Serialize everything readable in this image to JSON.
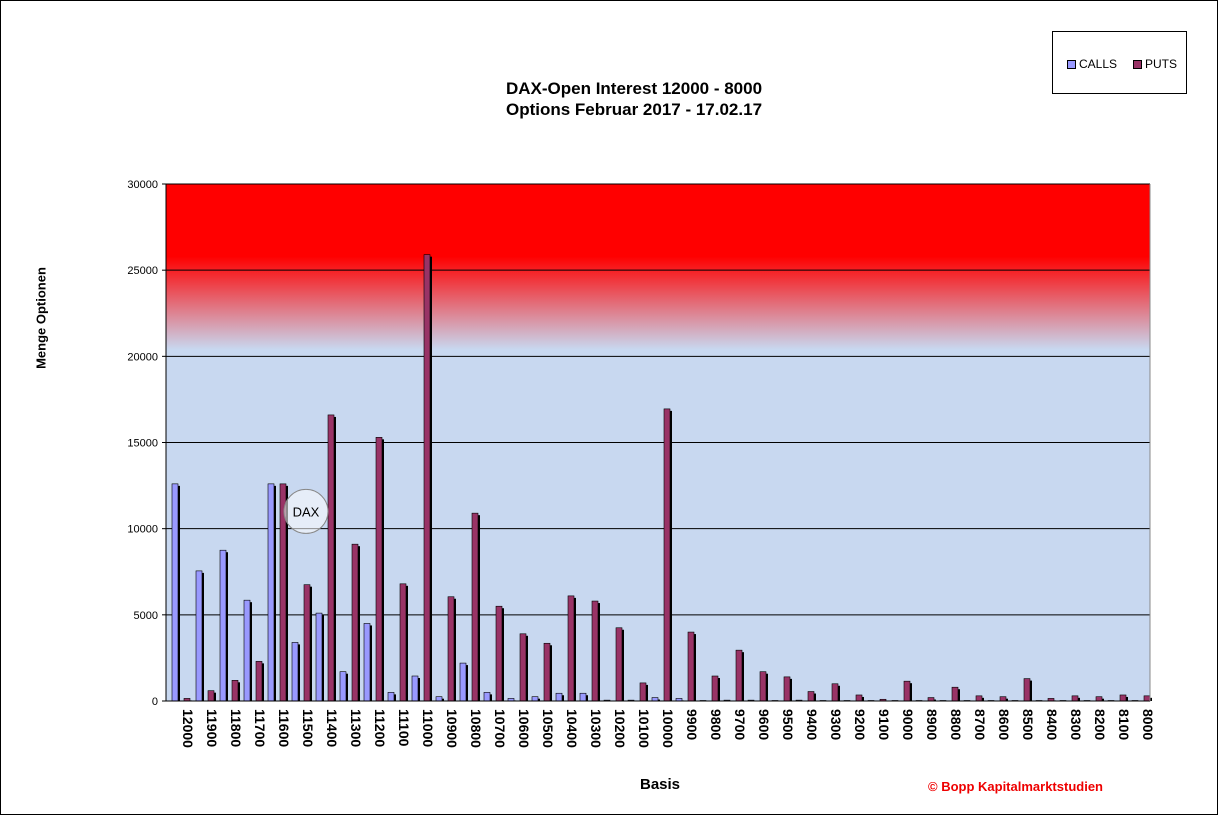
{
  "chart_data": {
    "type": "bar",
    "title": [
      "DAX-Open Interest 12000 - 8000",
      "Options Februar 2017 - 17.02.17"
    ],
    "xlabel": "Basis",
    "ylabel": "Menge Optionen",
    "ylim": [
      0,
      30000
    ],
    "yticks": [
      0,
      5000,
      10000,
      15000,
      20000,
      25000,
      30000
    ],
    "grid": true,
    "legend_position": "top-right",
    "categories": [
      "12000",
      "11900",
      "11800",
      "11700",
      "11600",
      "11500",
      "11400",
      "11300",
      "11200",
      "11100",
      "11000",
      "10900",
      "10800",
      "10700",
      "10600",
      "10500",
      "10400",
      "10300",
      "10200",
      "10100",
      "10000",
      "9900",
      "9800",
      "9700",
      "9600",
      "9500",
      "9400",
      "9300",
      "9200",
      "9100",
      "9000",
      "8900",
      "8800",
      "8700",
      "8600",
      "8500",
      "8400",
      "8300",
      "8200",
      "8100",
      "8000"
    ],
    "series": [
      {
        "name": "CALLS",
        "color": "#9999ff",
        "values": [
          12600,
          7550,
          8750,
          5850,
          12600,
          3400,
          5100,
          1700,
          4500,
          500,
          1450,
          250,
          2200,
          500,
          150,
          250,
          450,
          450,
          50,
          50,
          200,
          150,
          30,
          50,
          50,
          30,
          50,
          30,
          30,
          30,
          30,
          30,
          30,
          30,
          30,
          30,
          30,
          30,
          30,
          30,
          30
        ]
      },
      {
        "name": "PUTS",
        "color": "#993366",
        "values": [
          150,
          600,
          1200,
          2300,
          12600,
          6750,
          16600,
          9100,
          15300,
          6800,
          25900,
          6050,
          10900,
          5500,
          3900,
          3350,
          6100,
          5800,
          4250,
          1050,
          16950,
          4000,
          1450,
          2950,
          1700,
          1400,
          550,
          1000,
          350,
          100,
          1150,
          200,
          800,
          300,
          250,
          1300,
          150,
          300,
          250,
          350,
          300
        ]
      }
    ],
    "annotations": [
      {
        "text": "DAX",
        "near_category": "11500"
      }
    ],
    "background_gradient": {
      "top": "#ff0000",
      "bottom": "#c8d8f0"
    }
  },
  "copyright": "© Bopp Kapitalmarktstudien"
}
